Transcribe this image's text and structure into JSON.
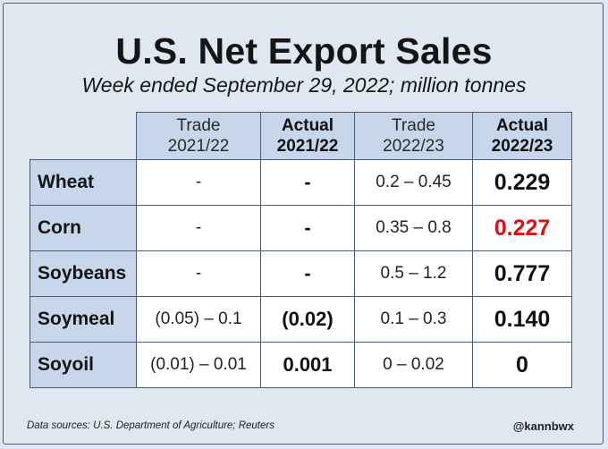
{
  "title": "U.S. Net Export Sales",
  "subtitle": "Week ended September 29, 2022; million tonnes",
  "columns": [
    {
      "line1": "Trade",
      "line2": "2021/22"
    },
    {
      "line1": "Actual",
      "line2": "2021/22"
    },
    {
      "line1": "Trade",
      "line2": "2022/23"
    },
    {
      "line1": "Actual",
      "line2": "2022/23"
    }
  ],
  "rows": [
    {
      "label": "Wheat",
      "values": [
        "-",
        "-",
        "0.2 – 0.45",
        "0.229"
      ]
    },
    {
      "label": "Corn",
      "values": [
        "-",
        "-",
        "0.35 – 0.8",
        "0.227"
      ]
    },
    {
      "label": "Soybeans",
      "values": [
        "-",
        "-",
        "0.5 – 1.2",
        "0.777"
      ]
    },
    {
      "label": "Soymeal",
      "values": [
        "(0.05) – 0.1",
        "(0.02)",
        "0.1 – 0.3",
        "0.140"
      ]
    },
    {
      "label": "Soyoil",
      "values": [
        "(0.01) – 0.01",
        "0.001",
        "0 – 0.02",
        "0"
      ]
    }
  ],
  "highlight_color": "#e01010",
  "source": "Data sources: U.S. Department of Agriculture; Reuters",
  "handle": "@kannbwx"
}
